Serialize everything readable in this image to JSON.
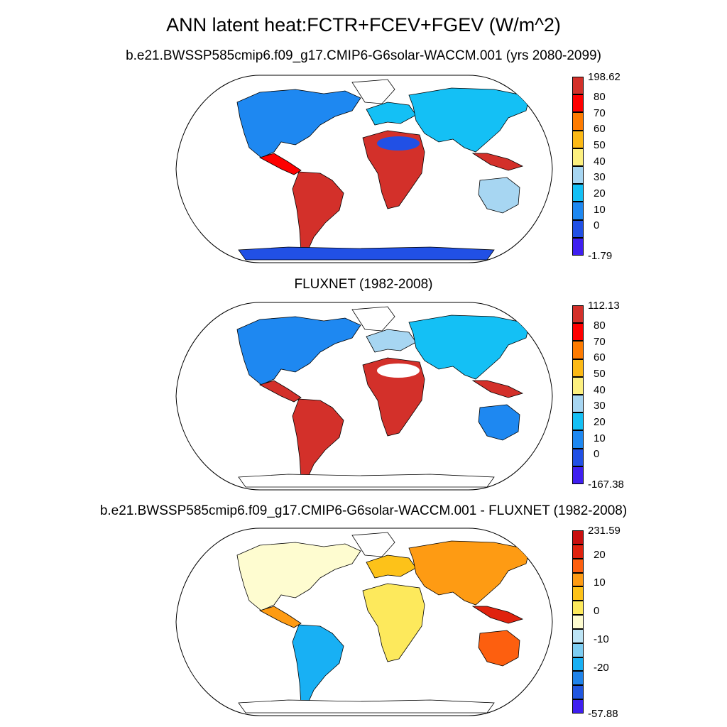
{
  "title": "ANN latent heat:FCTR+FCEV+FGEV (W/m^2)",
  "panels": [
    {
      "subtitle": "b.e21.BWSSP585cmip6.f09_g17.CMIP6-G6solar-WACCM.001 (yrs 2080-2099)",
      "colorbar_labels": [
        "198.62",
        "80",
        "70",
        "60",
        "50",
        "40",
        "30",
        "20",
        "10",
        "0",
        "-1.79"
      ],
      "colors": [
        "#d3302a",
        "#fe0000",
        "#fe7b00",
        "#fcb915",
        "#fdf07f",
        "#a7d6f2",
        "#14c0f5",
        "#1e88f1",
        "#2150e5",
        "#3f1ff0"
      ]
    },
    {
      "subtitle": "FLUXNET (1982-2008)",
      "colorbar_labels": [
        "112.13",
        "80",
        "70",
        "60",
        "50",
        "40",
        "30",
        "20",
        "10",
        "0",
        "-167.38"
      ],
      "colors": [
        "#d3302a",
        "#fe0000",
        "#fe7b00",
        "#fcb915",
        "#fdf07f",
        "#a7d6f2",
        "#14c0f5",
        "#1e88f1",
        "#2150e5",
        "#3f1ff0"
      ]
    },
    {
      "subtitle": "b.e21.BWSSP585cmip6.f09_g17.CMIP6-G6solar-WACCM.001 - FLUXNET (1982-2008)",
      "colorbar_labels": [
        "231.59",
        "20",
        "10",
        "0",
        "-10",
        "-20",
        "-57.88"
      ],
      "colors": [
        "#c80f0f",
        "#e0220e",
        "#fd5f0f",
        "#fe9b13",
        "#fdc219",
        "#fde95c",
        "#fefcd0",
        "#bde4f5",
        "#7dcdf2",
        "#18b0f4",
        "#1f83ea",
        "#2156df",
        "#3f1ff0"
      ]
    }
  ]
}
